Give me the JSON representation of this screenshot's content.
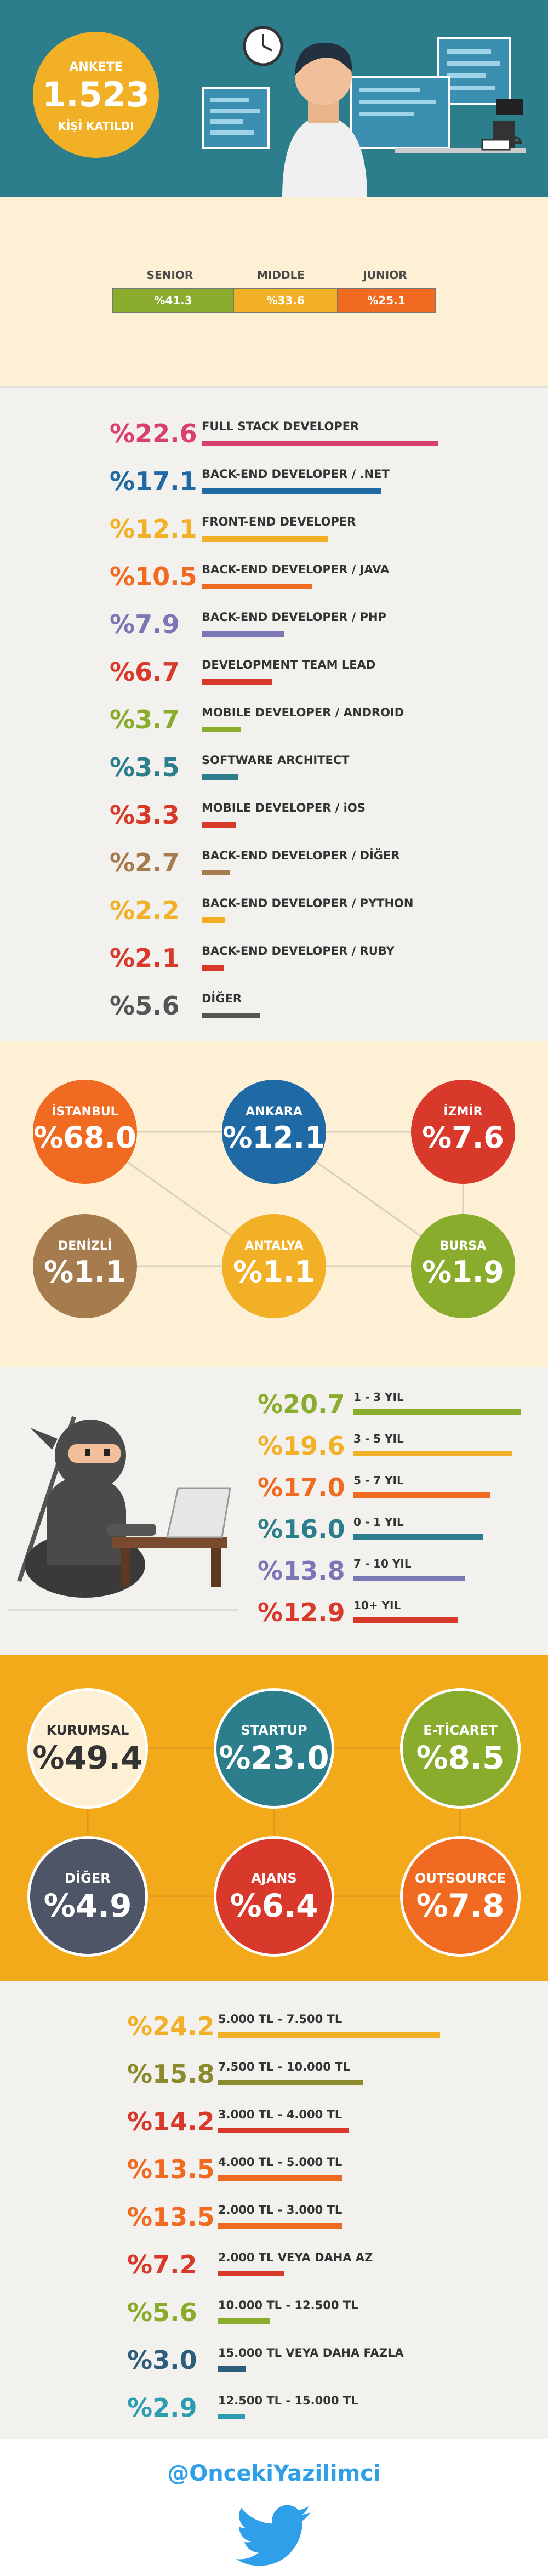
{
  "hero": {
    "top": "ANKETE",
    "count": "1.523",
    "bottom": "KİŞİ KATILDI"
  },
  "levels": [
    {
      "label": "SENIOR",
      "value": "%41.3",
      "color": "#8aac2d"
    },
    {
      "label": "MIDDLE",
      "value": "%33.6",
      "color": "#f2b027"
    },
    {
      "label": "JUNIOR",
      "value": "%25.1",
      "color": "#f06a21"
    }
  ],
  "roles": [
    {
      "pct": "%22.6",
      "label": "FULL STACK DEVELOPER",
      "color": "#d9406f",
      "value": 22.6
    },
    {
      "pct": "%17.1",
      "label": "BACK-END DEVELOPER / .NET",
      "color": "#1f6aa5",
      "value": 17.1
    },
    {
      "pct": "%12.1",
      "label": "FRONT-END DEVELOPER",
      "color": "#f2b027",
      "value": 12.1
    },
    {
      "pct": "%10.5",
      "label": "BACK-END DEVELOPER / JAVA",
      "color": "#f06a21",
      "value": 10.5
    },
    {
      "pct": "%7.9",
      "label": "BACK-END DEVELOPER / PHP",
      "color": "#7b76b6",
      "value": 7.9
    },
    {
      "pct": "%6.7",
      "label": "DEVELOPMENT TEAM LEAD",
      "color": "#d8392b",
      "value": 6.7
    },
    {
      "pct": "%3.7",
      "label": "MOBILE DEVELOPER / ANDROID",
      "color": "#8aac2d",
      "value": 3.7
    },
    {
      "pct": "%3.5",
      "label": "SOFTWARE ARCHITECT",
      "color": "#2c7e8c",
      "value": 3.5
    },
    {
      "pct": "%3.3",
      "label": "MOBILE DEVELOPER / iOS",
      "color": "#d8392b",
      "value": 3.3
    },
    {
      "pct": "%2.7",
      "label": "BACK-END DEVELOPER / DİĞER",
      "color": "#a67c4e",
      "value": 2.7
    },
    {
      "pct": "%2.2",
      "label": "BACK-END DEVELOPER / PYTHON",
      "color": "#f2b027",
      "value": 2.2
    },
    {
      "pct": "%2.1",
      "label": "BACK-END DEVELOPER / RUBY",
      "color": "#d8392b",
      "value": 2.1
    },
    {
      "pct": "%5.6",
      "label": "DİĞER",
      "color": "#555555",
      "value": 5.6
    }
  ],
  "cities": [
    {
      "name": "İSTANBUL",
      "value": "%68.0",
      "color": "#f06a21"
    },
    {
      "name": "ANKARA",
      "value": "%12.1",
      "color": "#1f6aa5"
    },
    {
      "name": "İZMİR",
      "value": "%7.6",
      "color": "#d8392b"
    },
    {
      "name": "DENİZLİ",
      "value": "%1.1",
      "color": "#a67c4e"
    },
    {
      "name": "ANTALYA",
      "value": "%1.1",
      "color": "#f2b027"
    },
    {
      "name": "BURSA",
      "value": "%1.9",
      "color": "#8aac2d"
    }
  ],
  "experience": [
    {
      "pct": "%20.7",
      "label": "1 - 3 YIL",
      "color": "#8aac2d",
      "value": 20.7
    },
    {
      "pct": "%19.6",
      "label": "3 - 5 YIL",
      "color": "#f2b027",
      "value": 19.6
    },
    {
      "pct": "%17.0",
      "label": "5 - 7 YIL",
      "color": "#f06a21",
      "value": 17.0
    },
    {
      "pct": "%16.0",
      "label": "0 - 1 YIL",
      "color": "#2c7e8c",
      "value": 16.0
    },
    {
      "pct": "%13.8",
      "label": "7 - 10 YIL",
      "color": "#7b76b6",
      "value": 13.8
    },
    {
      "pct": "%12.9",
      "label": "10+ YIL",
      "color": "#d8392b",
      "value": 12.9
    }
  ],
  "companies": [
    {
      "name": "KURUMSAL",
      "value": "%49.4",
      "color": "#fdf0d4",
      "text": "#333333"
    },
    {
      "name": "STARTUP",
      "value": "%23.0",
      "color": "#2c7e8c",
      "text": "#ffffff"
    },
    {
      "name": "E-TİCARET",
      "value": "%8.5",
      "color": "#8aac2d",
      "text": "#ffffff"
    },
    {
      "name": "DİĞER",
      "value": "%4.9",
      "color": "#4d5566",
      "text": "#ffffff"
    },
    {
      "name": "AJANS",
      "value": "%6.4",
      "color": "#d8392b",
      "text": "#ffffff"
    },
    {
      "name": "OUTSOURCE",
      "value": "%7.8",
      "color": "#f06a21",
      "text": "#ffffff"
    }
  ],
  "salaries": [
    {
      "pct": "%24.2",
      "label": "5.000 TL - 7.500 TL",
      "color": "#f2b027",
      "value": 24.2
    },
    {
      "pct": "%15.8",
      "label": "7.500 TL - 10.000 TL",
      "color": "#8a8a2d",
      "value": 15.8
    },
    {
      "pct": "%14.2",
      "label": "3.000 TL - 4.000 TL",
      "color": "#d8392b",
      "value": 14.2
    },
    {
      "pct": "%13.5",
      "label": "4.000 TL - 5.000 TL",
      "color": "#f06a21",
      "value": 13.5
    },
    {
      "pct": "%13.5",
      "label": "2.000 TL - 3.000 TL",
      "color": "#f06a21",
      "value": 13.5
    },
    {
      "pct": "%7.2",
      "label": "2.000 TL VEYA DAHA AZ",
      "color": "#d8392b",
      "value": 7.2
    },
    {
      "pct": "%5.6",
      "label": "10.000 TL - 12.500 TL",
      "color": "#8aac2d",
      "value": 5.6
    },
    {
      "pct": "%3.0",
      "label": "15.000 TL VEYA DAHA FAZLA",
      "color": "#2c5e7c",
      "value": 3.0
    },
    {
      "pct": "%2.9",
      "label": "12.500 TL - 15.000 TL",
      "color": "#2c9cb0",
      "value": 2.9
    }
  ],
  "footer": {
    "handle": "@OncekiYazilimci",
    "icon": "twitter-bird-icon"
  }
}
